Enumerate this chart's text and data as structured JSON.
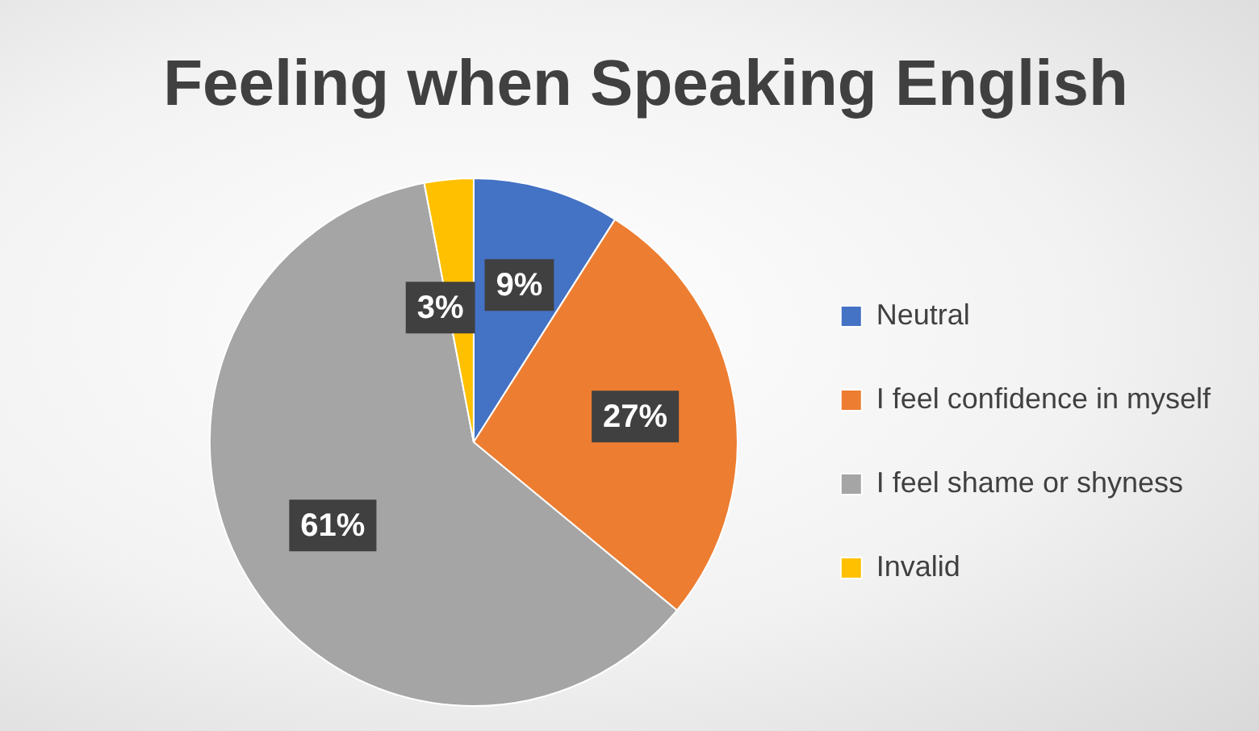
{
  "chart_data": {
    "type": "pie",
    "title": "Feeling when Speaking English",
    "categories": [
      "Neutral",
      "I feel confidence in myself",
      "I feel shame or shyness",
      "Invalid"
    ],
    "values": [
      9,
      27,
      61,
      3
    ],
    "colors": [
      "#4472c4",
      "#ed7d31",
      "#a5a5a5",
      "#ffc000"
    ],
    "value_labels": [
      "9%",
      "27%",
      "61%",
      "3%"
    ],
    "legend": "right"
  }
}
